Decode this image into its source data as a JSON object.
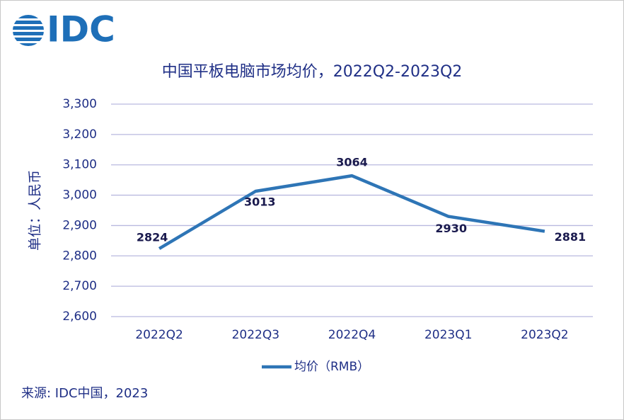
{
  "logo": "IDC",
  "chart_data": {
    "type": "line",
    "title": "中国平板电脑市场均价，2022Q2-2023Q2",
    "y_label": "单位：人民币",
    "source": "来源: IDC中国，2023",
    "categories": [
      "2022Q2",
      "2022Q3",
      "2022Q4",
      "2023Q1",
      "2023Q2"
    ],
    "series": [
      {
        "name": "均价（RMB）",
        "color": "#2e75b6",
        "values": [
          2824,
          3013,
          3064,
          2930,
          2881
        ]
      }
    ],
    "ylim": [
      2600,
      3300
    ],
    "yticks": [
      {
        "value": 2600,
        "label": "2,600"
      },
      {
        "value": 2700,
        "label": "2,700"
      },
      {
        "value": 2800,
        "label": "2,800"
      },
      {
        "value": 2900,
        "label": "2,900"
      },
      {
        "value": 3000,
        "label": "3,000"
      },
      {
        "value": 3100,
        "label": "3,100"
      },
      {
        "value": 3200,
        "label": "3,200"
      },
      {
        "value": 3300,
        "label": "3,300"
      }
    ],
    "grid": true,
    "legend": "bottom"
  }
}
